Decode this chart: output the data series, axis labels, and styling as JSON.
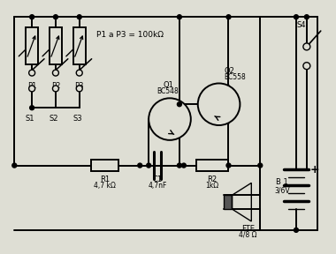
{
  "bg_color": "#deded4",
  "lc": "#000000",
  "lw": 1.4,
  "labels": {
    "p1a3": "P1 a P3 = 100kΩ",
    "P1": "P1",
    "P2": "P2",
    "P3": "P3",
    "S1": "S1",
    "S2": "S2",
    "S3": "S3",
    "Q1": "Q1",
    "Q1_part": "BC548",
    "Q2": "Q2",
    "Q2_part": "BC558",
    "R1": "R1",
    "R1_val": "4,7 kΩ",
    "C1": "C1",
    "C1_val": "4,7nF",
    "R2": "R2",
    "R2_val": "1kΩ",
    "FTE_label": "FTE",
    "FTE_val": "4/8 Ω",
    "B1_label": "B 1",
    "B1_val": "3/6V",
    "S4": "S4"
  }
}
